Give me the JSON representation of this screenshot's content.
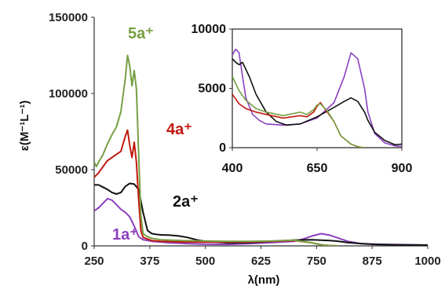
{
  "chart_data": [
    {
      "type": "line",
      "xlabel": "λ(nm)",
      "ylabel": "ε(M⁻¹L⁻¹)",
      "xlim": [
        250,
        1000
      ],
      "ylim": [
        0,
        150000
      ],
      "xticks": [
        "250",
        "375",
        "500",
        "625",
        "750",
        "875",
        "1000"
      ],
      "yticks": [
        "0",
        "50000",
        "100000",
        "150000"
      ],
      "series": [
        {
          "name": "1a⁺",
          "color": "#8b3fbf",
          "x": [
            250,
            260,
            270,
            280,
            290,
            300,
            310,
            320,
            330,
            340,
            350,
            360,
            370,
            380,
            400,
            420,
            440,
            460,
            480,
            500,
            550,
            600,
            650,
            700,
            720,
            740,
            760,
            780,
            800,
            820,
            850,
            900,
            1000
          ],
          "y": [
            23000,
            25000,
            28000,
            31000,
            30000,
            27000,
            24000,
            22000,
            19000,
            13000,
            6000,
            4000,
            3500,
            3000,
            2500,
            2000,
            1800,
            1500,
            1300,
            1200,
            1000,
            1500,
            2200,
            3000,
            4500,
            6500,
            8000,
            7000,
            5000,
            3000,
            1500,
            1000,
            500
          ]
        },
        {
          "name": "2a⁺",
          "color": "#111111",
          "x": [
            250,
            260,
            270,
            280,
            290,
            300,
            310,
            320,
            330,
            340,
            350,
            360,
            370,
            380,
            390,
            400,
            420,
            440,
            460,
            480,
            500,
            550,
            600,
            650,
            700,
            740,
            780,
            800,
            820,
            850,
            880,
            900,
            950,
            1000
          ],
          "y": [
            40000,
            40000,
            38500,
            37000,
            35000,
            34000,
            35000,
            39000,
            41000,
            40500,
            37000,
            22000,
            10000,
            8000,
            7500,
            7200,
            7000,
            6500,
            5500,
            4000,
            3000,
            2000,
            2200,
            3000,
            3800,
            4000,
            3500,
            3000,
            2200,
            1500,
            1000,
            800,
            600,
            500
          ]
        },
        {
          "name": "4a⁺",
          "color": "#c0190f",
          "x": [
            250,
            260,
            270,
            280,
            290,
            300,
            310,
            320,
            325,
            330,
            335,
            340,
            345,
            350,
            355,
            360,
            370,
            380,
            400,
            450,
            500,
            550,
            600,
            650,
            700,
            740,
            760,
            780,
            800
          ],
          "y": [
            45000,
            48000,
            52000,
            56000,
            58000,
            60000,
            62000,
            72000,
            76000,
            66000,
            58000,
            68000,
            55000,
            30000,
            10000,
            5500,
            4500,
            3500,
            3000,
            2500,
            2500,
            2500,
            2600,
            3000,
            3500,
            2000,
            700,
            200,
            0
          ]
        },
        {
          "name": "5a⁺",
          "color": "#76a043",
          "x": [
            250,
            255,
            260,
            270,
            280,
            290,
            300,
            310,
            320,
            325,
            330,
            335,
            340,
            345,
            350,
            355,
            360,
            370,
            380,
            400,
            450,
            500,
            550,
            600,
            650,
            700,
            740,
            760,
            780,
            800
          ],
          "y": [
            55000,
            52000,
            55000,
            60000,
            67000,
            73000,
            78000,
            88000,
            110000,
            125000,
            118000,
            105000,
            115000,
            103000,
            60000,
            20000,
            8000,
            6000,
            5000,
            4000,
            3500,
            3200,
            3000,
            3000,
            3200,
            3700,
            2000,
            700,
            200,
            0
          ]
        }
      ]
    },
    {
      "type": "line",
      "xlim": [
        400,
        900
      ],
      "ylim": [
        0,
        10000
      ],
      "xticks": [
        "400",
        "650",
        "900"
      ],
      "yticks": [
        "0",
        "5000",
        "10000"
      ],
      "series": [
        {
          "name": "1a⁺",
          "color": "#8b3fbf",
          "x": [
            400,
            410,
            420,
            430,
            440,
            450,
            460,
            480,
            500,
            550,
            600,
            650,
            700,
            730,
            750,
            770,
            790,
            800,
            820,
            850,
            880,
            900
          ],
          "y": [
            7800,
            8300,
            8000,
            6000,
            4200,
            3500,
            2800,
            2300,
            2000,
            1900,
            2000,
            2500,
            3800,
            6000,
            8000,
            7500,
            5000,
            3000,
            1200,
            400,
            150,
            100
          ]
        },
        {
          "name": "2a⁺",
          "color": "#111111",
          "x": [
            400,
            410,
            420,
            430,
            450,
            470,
            500,
            530,
            560,
            600,
            650,
            700,
            730,
            750,
            770,
            790,
            800,
            820,
            850,
            880,
            900
          ],
          "y": [
            7500,
            7200,
            7000,
            7200,
            6000,
            4500,
            3000,
            2200,
            1900,
            2000,
            2600,
            3400,
            3900,
            4200,
            3900,
            3000,
            2300,
            1300,
            600,
            250,
            300
          ]
        },
        {
          "name": "4a⁺",
          "color": "#c0190f",
          "x": [
            400,
            420,
            440,
            470,
            500,
            550,
            600,
            620,
            640,
            650,
            660,
            670,
            680,
            700,
            720,
            750,
            770,
            790
          ],
          "y": [
            4500,
            3700,
            3300,
            3000,
            2800,
            2500,
            2700,
            2600,
            3000,
            3500,
            3800,
            3400,
            3000,
            2200,
            1000,
            300,
            80,
            0
          ]
        },
        {
          "name": "5a⁺",
          "color": "#76a043",
          "x": [
            400,
            420,
            440,
            470,
            500,
            550,
            600,
            620,
            640,
            650,
            660,
            670,
            680,
            700,
            720,
            750,
            770,
            790
          ],
          "y": [
            6000,
            4800,
            4000,
            3300,
            3000,
            2700,
            3000,
            2800,
            3200,
            3600,
            3700,
            3400,
            3100,
            2200,
            1000,
            300,
            80,
            0
          ]
        }
      ]
    }
  ]
}
